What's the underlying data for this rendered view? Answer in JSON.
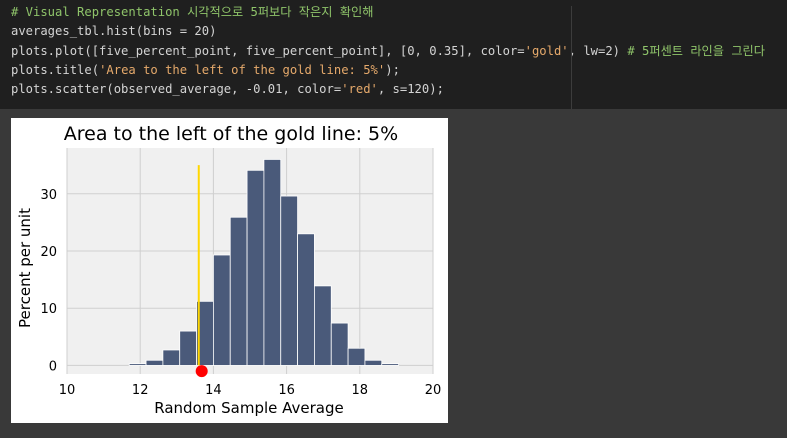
{
  "code_lines": [
    [
      {
        "t": "# Visual Representation 시각적으로 5퍼보다 작은지 확인해",
        "c": "comment"
      }
    ],
    [
      {
        "t": "averages_tbl.hist(bins = 20)",
        "c": ""
      }
    ],
    [
      {
        "t": "plots.plot([five_percent_point, five_percent_point], [0, 0.35], color=",
        "c": ""
      },
      {
        "t": "'gold'",
        "c": "str"
      },
      {
        "t": ", lw=2) ",
        "c": ""
      },
      {
        "t": "# 5퍼센트 라인을 그린다",
        "c": "comment"
      }
    ],
    [
      {
        "t": "plots.title(",
        "c": ""
      },
      {
        "t": "'Area to the left of the gold line: 5%'",
        "c": "str"
      },
      {
        "t": ");",
        "c": ""
      }
    ],
    [
      {
        "t": "plots.scatter(observed_average, -0.01, color=",
        "c": ""
      },
      {
        "t": "'red'",
        "c": "str"
      },
      {
        "t": ", s=120);",
        "c": ""
      }
    ]
  ],
  "chart_data": {
    "type": "bar",
    "title": "Area to the left of the gold line: 5%",
    "xlabel": "Random Sample Average",
    "ylabel": "Percent per unit",
    "xlim": [
      10,
      20
    ],
    "ylim": [
      -1.5,
      38
    ],
    "xticks": [
      10,
      12,
      14,
      16,
      18,
      20
    ],
    "yticks": [
      0,
      10,
      20,
      30
    ],
    "grid": true,
    "bar_color": "#4a5a7a",
    "bin_width": 0.46,
    "bins": [
      {
        "x": 11.7,
        "value": 0.3
      },
      {
        "x": 12.16,
        "value": 0.9
      },
      {
        "x": 12.62,
        "value": 2.7
      },
      {
        "x": 13.08,
        "value": 6.0
      },
      {
        "x": 13.54,
        "value": 11.2
      },
      {
        "x": 14.0,
        "value": 19.3
      },
      {
        "x": 14.46,
        "value": 25.9
      },
      {
        "x": 14.92,
        "value": 34.1
      },
      {
        "x": 15.38,
        "value": 36.0
      },
      {
        "x": 15.84,
        "value": 29.6
      },
      {
        "x": 16.3,
        "value": 23.0
      },
      {
        "x": 16.76,
        "value": 13.9
      },
      {
        "x": 17.22,
        "value": 7.4
      },
      {
        "x": 17.68,
        "value": 3.0
      },
      {
        "x": 18.14,
        "value": 0.9
      },
      {
        "x": 18.6,
        "value": 0.3
      }
    ],
    "gold_line": {
      "x": 13.6,
      "y": [
        0,
        35
      ],
      "color": "#ffd700"
    },
    "red_point": {
      "x": 13.68,
      "y": -1.0,
      "color": "#ff0000"
    }
  }
}
